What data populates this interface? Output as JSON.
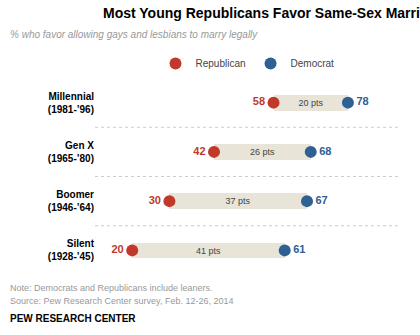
{
  "chart_data": {
    "type": "dumbbell",
    "title": "Most Young Republicans Favor Same-Sex Marriage",
    "subtitle": "% who favor allowing gays and lesbians to marry legally",
    "notes": [
      "Note: Democrats and Republicans include leaners.",
      "Source: Pew Research Center survey, Feb. 12-26, 2014"
    ],
    "footer": "PEW RESEARCH CENTER",
    "categories": [
      "Millennial\n(1981-’96)",
      "Gen X\n(1965-’80)",
      "Boomer\n(1946-’64)",
      "Silent\n(1928-’45)"
    ],
    "series": [
      {
        "name": "Republican",
        "color": "#c0392b",
        "values": [
          58,
          42,
          30,
          20
        ]
      },
      {
        "name": "Democrat",
        "color": "#2e6093",
        "values": [
          78,
          68,
          67,
          61
        ]
      }
    ],
    "gaps": {
      "values": [
        20,
        26,
        37,
        41
      ],
      "value_labels": [
        "20 pts",
        "26 pts",
        "37 pts",
        "41 pts"
      ],
      "color": "#e8e4d8"
    },
    "orientation": "horizontal",
    "xlim": [
      10,
      92
    ],
    "tick_labels": "y",
    "data_labels": true,
    "legend": "top",
    "grid": false
  }
}
